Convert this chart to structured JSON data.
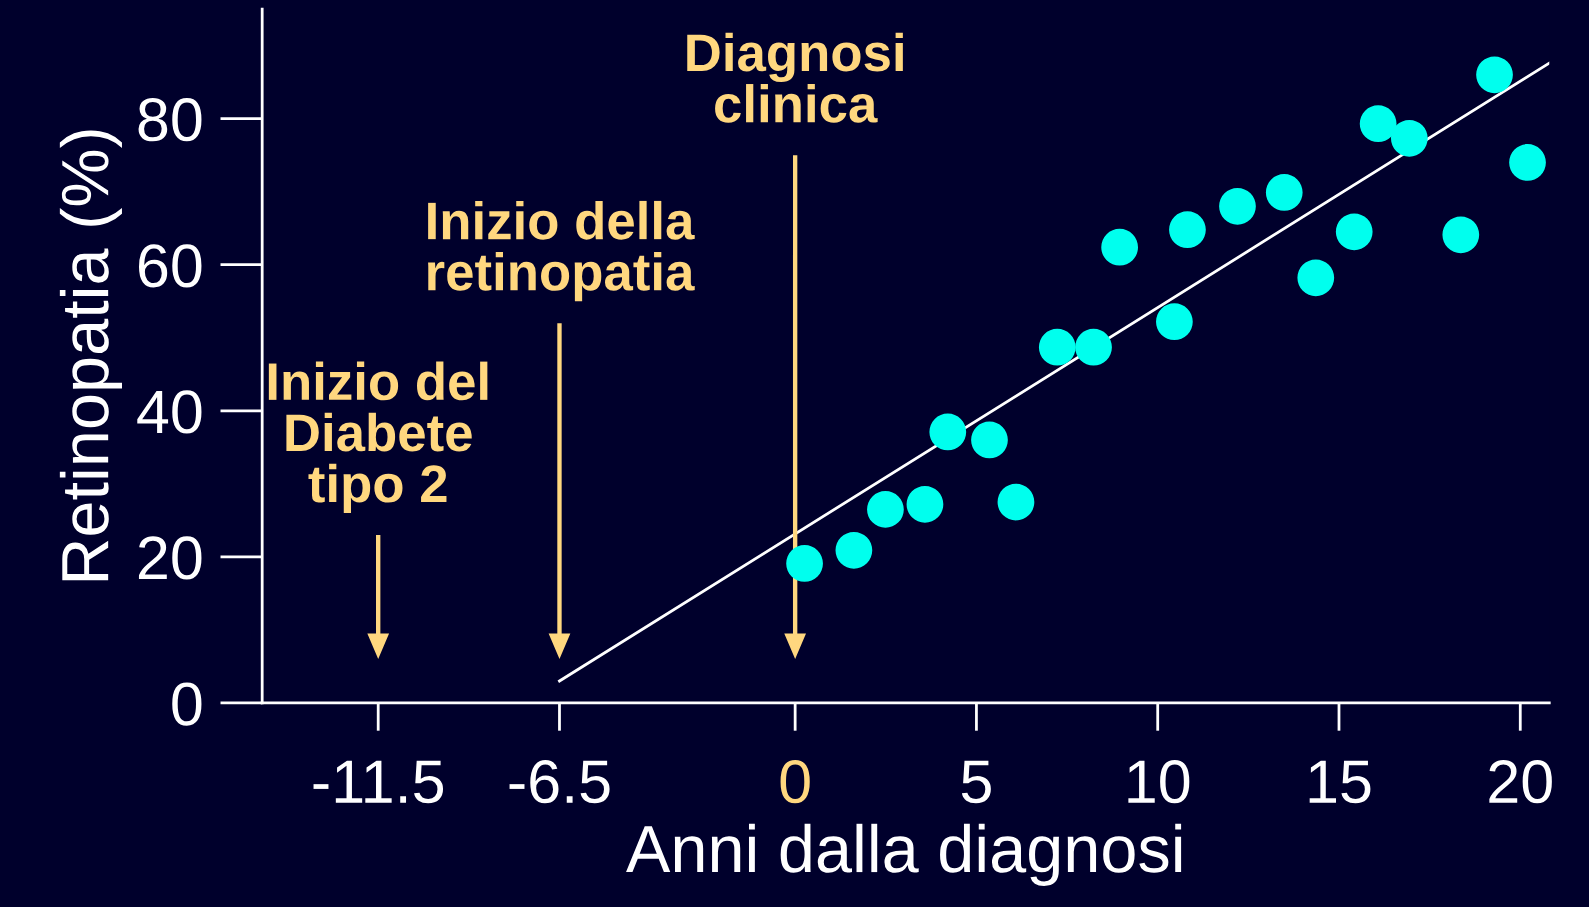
{
  "chart_data": {
    "type": "scatter",
    "xlabel": "Anni dalla diagnosi",
    "ylabel": "Retinopatia (%)",
    "xlim": [
      -14.7,
      20.8
    ],
    "ylim": [
      0,
      95
    ],
    "xticks": [
      -11.5,
      -6.5,
      0,
      5,
      10,
      15,
      20
    ],
    "yticks": [
      0,
      20,
      40,
      60,
      80
    ],
    "grid": false,
    "legend": false,
    "marker": "circle",
    "series": [
      {
        "color": "#00ffee",
        "x": [
          0.26,
          1.62,
          2.49,
          3.58,
          4.21,
          5.36,
          6.09,
          7.23,
          8.23,
          8.95,
          10.46,
          10.82,
          12.2,
          13.49,
          14.36,
          15.42,
          16.08,
          16.94,
          18.36,
          19.29,
          20.2
        ],
        "values": [
          19.1,
          20.9,
          26.5,
          27.2,
          37.1,
          36.0,
          27.5,
          48.7,
          48.7,
          62.4,
          52.2,
          64.8,
          68.0,
          69.9,
          58.2,
          64.5,
          79.3,
          77.3,
          64.1,
          86.0,
          74.0
        ]
      },
      {
        "type": "line",
        "marker": "none",
        "color": "#ffffff",
        "x": [
          -6.5,
          20.8
        ],
        "values": [
          3,
          87.6
        ]
      }
    ],
    "annotations": [
      "Inizio del\nDiabete\ntipo 2",
      "Inizio della\nretinopatia",
      "Diagnosi\nclinica"
    ]
  }
}
